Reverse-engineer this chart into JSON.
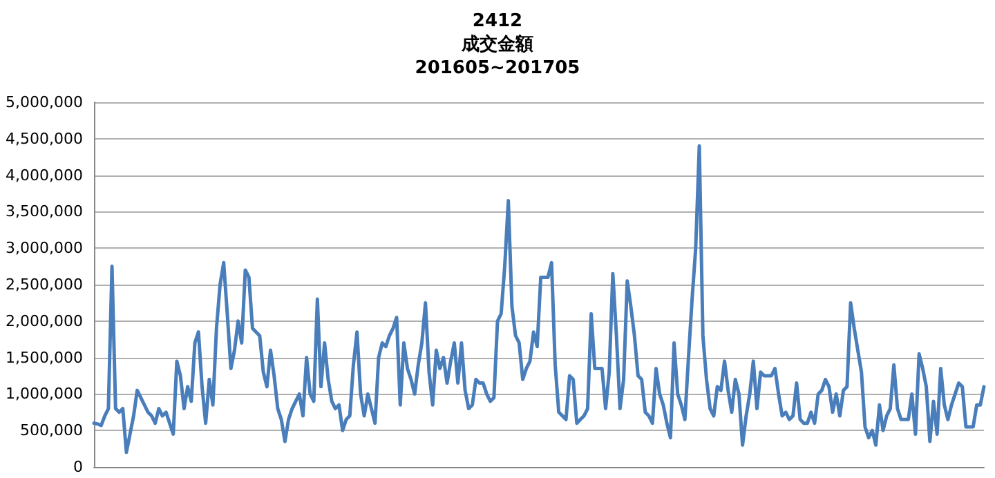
{
  "chart_data": {
    "type": "line",
    "title": "2412",
    "subtitle": "成交金額\n201605~201705",
    "categories": [
      null,
      null,
      null,
      null,
      null,
      null,
      null,
      null,
      null,
      null,
      null,
      null,
      null,
      null,
      null,
      null,
      null,
      null,
      null,
      null,
      null,
      null,
      null,
      null,
      null,
      null,
      null,
      null,
      null,
      null,
      null,
      null,
      null,
      null,
      null,
      null,
      null,
      null,
      null,
      null,
      null,
      null,
      null,
      null,
      null,
      null,
      null,
      null,
      null,
      null,
      null,
      null,
      null,
      null,
      null,
      null,
      null,
      null,
      null,
      null,
      null,
      null,
      null,
      null,
      null,
      null,
      null,
      null,
      null,
      null,
      null,
      null,
      null,
      null,
      null,
      null,
      null,
      null,
      null,
      null,
      null,
      null,
      null,
      null,
      null,
      null,
      null,
      null,
      null,
      null,
      null,
      null,
      null,
      null,
      null,
      null,
      null,
      null,
      null,
      null,
      null,
      null,
      null,
      null,
      null,
      null,
      null,
      null,
      null,
      null,
      null,
      null,
      null,
      null,
      null,
      null,
      null,
      null,
      null,
      null,
      null,
      null,
      null,
      null,
      null,
      null,
      null,
      null,
      null,
      null,
      null,
      null,
      null,
      null,
      null,
      null,
      null,
      null,
      null,
      null,
      null,
      null,
      null,
      null,
      null,
      null,
      null,
      null,
      null,
      null,
      null,
      null,
      null,
      null,
      null,
      null,
      null,
      null,
      null,
      null,
      null,
      null,
      null,
      null,
      null,
      null,
      null,
      null,
      null,
      null,
      null,
      null,
      null,
      null,
      null,
      null,
      null,
      null,
      null,
      null,
      null,
      null,
      null,
      null,
      null,
      null,
      null,
      null,
      null,
      null,
      null,
      null,
      null,
      null,
      null,
      null,
      null,
      null,
      null,
      null,
      null,
      null,
      null,
      null,
      null,
      null,
      null,
      null,
      null,
      null,
      null,
      null,
      null,
      null,
      null,
      null,
      null,
      null,
      null,
      null,
      null,
      null,
      null,
      null,
      null,
      null,
      null,
      null,
      null,
      null,
      null,
      null,
      null,
      null,
      null,
      null,
      null,
      null,
      null,
      null,
      null,
      null,
      null,
      null,
      null,
      null,
      null,
      null
    ],
    "series": [
      {
        "color": "#4a7ebb",
        "values": [
          600000,
          590000,
          570000,
          700000,
          800000,
          2750000,
          800000,
          750000,
          800000,
          200000,
          450000,
          700000,
          1050000,
          950000,
          850000,
          750000,
          700000,
          600000,
          800000,
          700000,
          750000,
          600000,
          450000,
          1450000,
          1250000,
          800000,
          1100000,
          900000,
          1700000,
          1850000,
          1100000,
          600000,
          1200000,
          850000,
          1900000,
          2500000,
          2800000,
          2100000,
          1350000,
          1600000,
          2000000,
          1700000,
          2700000,
          2600000,
          1900000,
          1850000,
          1800000,
          1300000,
          1100000,
          1600000,
          1250000,
          800000,
          650000,
          350000,
          650000,
          800000,
          900000,
          1000000,
          700000,
          1500000,
          1000000,
          900000,
          2300000,
          1100000,
          1700000,
          1200000,
          900000,
          800000,
          850000,
          500000,
          650000,
          700000,
          1400000,
          1850000,
          1000000,
          700000,
          1000000,
          800000,
          600000,
          1500000,
          1700000,
          1650000,
          1800000,
          1900000,
          2050000,
          850000,
          1700000,
          1350000,
          1200000,
          1000000,
          1400000,
          1700000,
          2250000,
          1300000,
          850000,
          1600000,
          1350000,
          1500000,
          1150000,
          1450000,
          1700000,
          1150000,
          1700000,
          1050000,
          800000,
          850000,
          1200000,
          1150000,
          1150000,
          1000000,
          900000,
          950000,
          2000000,
          2100000,
          2750000,
          3650000,
          2200000,
          1800000,
          1700000,
          1200000,
          1350000,
          1450000,
          1850000,
          1650000,
          2600000,
          2600000,
          2600000,
          2800000,
          1400000,
          750000,
          700000,
          650000,
          1250000,
          1200000,
          600000,
          650000,
          700000,
          800000,
          2100000,
          1350000,
          1350000,
          1350000,
          800000,
          1300000,
          2650000,
          1800000,
          800000,
          1200000,
          2550000,
          2200000,
          1800000,
          1250000,
          1200000,
          750000,
          700000,
          600000,
          1350000,
          1000000,
          850000,
          600000,
          400000,
          1700000,
          1000000,
          850000,
          650000,
          1500000,
          2300000,
          3000000,
          4400000,
          1800000,
          1200000,
          800000,
          700000,
          1100000,
          1050000,
          1450000,
          1050000,
          750000,
          1200000,
          1000000,
          300000,
          700000,
          1000000,
          1450000,
          800000,
          1300000,
          1250000,
          1250000,
          1250000,
          1350000,
          1000000,
          700000,
          750000,
          650000,
          700000,
          1150000,
          650000,
          600000,
          600000,
          750000,
          600000,
          1000000,
          1050000,
          1200000,
          1100000,
          750000,
          1000000,
          700000,
          1050000,
          1100000,
          2250000,
          1900000,
          1600000,
          1300000,
          550000,
          400000,
          500000,
          300000,
          850000,
          500000,
          700000,
          800000,
          1400000,
          800000,
          650000,
          650000,
          650000,
          1000000,
          450000,
          1550000,
          1350000,
          1100000,
          350000,
          900000,
          450000,
          1350000,
          850000,
          650000,
          850000,
          1000000,
          1150000,
          1100000,
          550000,
          550000,
          550000,
          850000,
          850000,
          1100000
        ]
      }
    ],
    "ylim": [
      0,
      5000000
    ],
    "yticks": [
      {
        "value": 0,
        "label": "0"
      },
      {
        "value": 500000,
        "label": "500,000"
      },
      {
        "value": 1000000,
        "label": "1,000,000"
      },
      {
        "value": 1500000,
        "label": "1,500,000"
      },
      {
        "value": 2000000,
        "label": "2,000,000"
      },
      {
        "value": 2500000,
        "label": "2,500,000"
      },
      {
        "value": 3000000,
        "label": "3,000,000"
      },
      {
        "value": 3500000,
        "label": "3,500,000"
      },
      {
        "value": 4000000,
        "label": "4,000,000"
      },
      {
        "value": 4500000,
        "label": "4,500,000"
      },
      {
        "value": 5000000,
        "label": "5,000,000"
      }
    ],
    "grid": "y",
    "marker": "none",
    "line_style": "solid"
  }
}
